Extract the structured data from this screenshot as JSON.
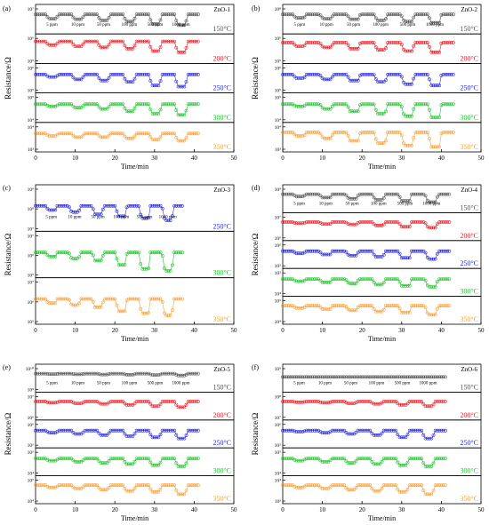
{
  "figure": {
    "y_label": "Resistance/Ω",
    "x_label": "Time/min",
    "concentration_labels": [
      "5 ppm",
      "10 ppm",
      "50 ppm",
      "100 ppm",
      "500 ppm",
      "1000 ppm"
    ]
  },
  "colors": {
    "150": "#555555",
    "200": "#ee1c25",
    "250": "#2b2bd8",
    "300": "#22c42e",
    "350": "#f7a23e",
    "axis": "#000000"
  },
  "chart_data": [
    {
      "id": "a",
      "panel_label": "(a)",
      "sample": "ZnO-1",
      "type": "scatter",
      "xlabel": "Time/min",
      "ylabel": "Resistance/Ω",
      "xlim": [
        0,
        50
      ],
      "x_ticks": [
        0,
        10,
        20,
        30,
        40,
        50
      ],
      "end_time": 41,
      "strips": [
        {
          "temp": "150°C",
          "color_key": "150",
          "y_ticks": [
            "10⁷"
          ],
          "baseline": 0.7,
          "dips": [
            0.18,
            0.2,
            0.25,
            0.3,
            0.4,
            0.45
          ],
          "labels": true
        },
        {
          "temp": "200°C",
          "color_key": "200",
          "y_ticks": [
            "10⁶",
            "10⁵"
          ],
          "baseline": 0.8,
          "dips": [
            0.15,
            0.2,
            0.25,
            0.3,
            0.4,
            0.45
          ],
          "labels": false
        },
        {
          "temp": "250°C",
          "color_key": "250",
          "y_ticks": [
            "10⁶",
            "10⁵"
          ],
          "baseline": 0.65,
          "dips": [
            0.1,
            0.2,
            0.25,
            0.3,
            0.45,
            0.5
          ],
          "labels": false
        },
        {
          "temp": "300°C",
          "color_key": "300",
          "y_ticks": [
            "10⁵",
            "10⁴"
          ],
          "baseline": 0.65,
          "dips": [
            0.1,
            0.15,
            0.2,
            0.3,
            0.4,
            0.45
          ],
          "labels": false
        },
        {
          "temp": "350°C",
          "color_key": "350",
          "y_ticks": [
            "10⁴",
            "10³"
          ],
          "baseline": 0.65,
          "dips": [
            0.1,
            0.15,
            0.15,
            0.2,
            0.25,
            0.3
          ],
          "labels": false
        }
      ]
    },
    {
      "id": "b",
      "panel_label": "(b)",
      "sample": "ZnO-2",
      "type": "scatter",
      "xlabel": "Time/min",
      "ylabel": "Resistance/Ω",
      "xlim": [
        0,
        50
      ],
      "x_ticks": [
        0,
        10,
        20,
        30,
        40,
        50
      ],
      "end_time": 43,
      "strips": [
        {
          "temp": "150°C",
          "color_key": "150",
          "y_ticks": [
            "10⁸"
          ],
          "baseline": 0.7,
          "dips": [
            0.15,
            0.18,
            0.2,
            0.25,
            0.3,
            0.35
          ],
          "labels": true
        },
        {
          "temp": "200°C",
          "color_key": "200",
          "y_ticks": [
            "10⁶",
            "10⁵"
          ],
          "baseline": 0.75,
          "dips": [
            0.15,
            0.2,
            0.25,
            0.3,
            0.35,
            0.4
          ],
          "labels": false
        },
        {
          "temp": "250°C",
          "color_key": "250",
          "y_ticks": [
            "10⁶",
            "10⁵"
          ],
          "baseline": 0.65,
          "dips": [
            0.15,
            0.2,
            0.25,
            0.3,
            0.4,
            0.45
          ],
          "labels": false
        },
        {
          "temp": "300°C",
          "color_key": "300",
          "y_ticks": [
            "10⁵",
            "10⁴"
          ],
          "baseline": 0.65,
          "dips": [
            0.1,
            0.2,
            0.3,
            0.4,
            0.5,
            0.55
          ],
          "labels": false
        },
        {
          "temp": "350°C",
          "color_key": "350",
          "y_ticks": [
            "10⁴",
            "10³"
          ],
          "baseline": 0.7,
          "dips": [
            0.15,
            0.25,
            0.35,
            0.45,
            0.55,
            0.6
          ],
          "labels": false
        }
      ]
    },
    {
      "id": "c",
      "panel_label": "(c)",
      "sample": "ZnO-3",
      "type": "scatter",
      "xlabel": "Time/min",
      "ylabel": "Resistance/Ω",
      "xlim": [
        0,
        50
      ],
      "x_ticks": [
        0,
        10,
        20,
        30,
        40,
        50
      ],
      "end_time": 37,
      "strips": [
        {
          "temp": "250°C",
          "color_key": "250",
          "y_ticks": [
            "10⁹",
            "10⁸",
            "10⁷"
          ],
          "baseline": 0.55,
          "dips": [
            0.1,
            0.15,
            0.2,
            0.25,
            0.3,
            0.35
          ],
          "labels": true
        },
        {
          "temp": "300°C",
          "color_key": "300",
          "y_ticks": [
            "10⁷",
            "10⁶",
            "10⁵"
          ],
          "baseline": 0.55,
          "dips": [
            0.1,
            0.15,
            0.2,
            0.3,
            0.4,
            0.45
          ],
          "labels": false
        },
        {
          "temp": "350°C",
          "color_key": "350",
          "y_ticks": [
            "10⁷",
            "10⁶",
            "10⁵"
          ],
          "baseline": 0.55,
          "dips": [
            0.1,
            0.15,
            0.2,
            0.3,
            0.35,
            0.4
          ],
          "labels": false
        }
      ]
    },
    {
      "id": "d",
      "panel_label": "(d)",
      "sample": "ZnO-4",
      "type": "scatter",
      "xlabel": "Time/min",
      "ylabel": "Resistance/Ω",
      "xlim": [
        0,
        50
      ],
      "x_ticks": [
        0,
        10,
        20,
        30,
        40,
        50
      ],
      "end_time": 42,
      "strips": [
        {
          "temp": "150°C",
          "color_key": "150",
          "y_ticks": [
            "10⁹"
          ],
          "baseline": 0.7,
          "dips": [
            0.1,
            0.15,
            0.2,
            0.25,
            0.3,
            0.35
          ],
          "labels": true
        },
        {
          "temp": "200°C",
          "color_key": "200",
          "y_ticks": [
            "10⁷",
            "10⁶"
          ],
          "baseline": 0.7,
          "dips": [
            0.05,
            0.08,
            0.1,
            0.15,
            0.2,
            0.25
          ],
          "labels": false
        },
        {
          "temp": "250°C",
          "color_key": "250",
          "y_ticks": [
            "10⁶",
            "10⁵"
          ],
          "baseline": 0.65,
          "dips": [
            0.1,
            0.15,
            0.2,
            0.25,
            0.3,
            0.35
          ],
          "labels": false
        },
        {
          "temp": "300°C",
          "color_key": "300",
          "y_ticks": [
            "10⁵",
            "10⁴"
          ],
          "baseline": 0.65,
          "dips": [
            0.1,
            0.15,
            0.2,
            0.25,
            0.3,
            0.35
          ],
          "labels": false
        },
        {
          "temp": "350°C",
          "color_key": "350",
          "y_ticks": [
            "10⁵",
            "10⁴"
          ],
          "baseline": 0.7,
          "dips": [
            0.1,
            0.15,
            0.2,
            0.25,
            0.3,
            0.4
          ],
          "labels": false
        }
      ]
    },
    {
      "id": "e",
      "panel_label": "(e)",
      "sample": "ZnO-5",
      "type": "scatter",
      "xlabel": "Time/min",
      "ylabel": "Resistance/Ω",
      "xlim": [
        0,
        50
      ],
      "x_ticks": [
        0,
        10,
        20,
        30,
        40,
        50
      ],
      "end_time": 41,
      "strips": [
        {
          "temp": "150°C",
          "color_key": "150",
          "y_ticks": [
            "10¹⁰",
            "10⁹"
          ],
          "baseline": 0.7,
          "dips": [
            0.02,
            0.03,
            0.04,
            0.05,
            0.06,
            0.08
          ],
          "labels": true
        },
        {
          "temp": "200°C",
          "color_key": "200",
          "y_ticks": [
            "10⁷",
            "10⁶"
          ],
          "baseline": 0.7,
          "dips": [
            0.05,
            0.08,
            0.1,
            0.15,
            0.2,
            0.25
          ],
          "labels": false
        },
        {
          "temp": "250°C",
          "color_key": "250",
          "y_ticks": [
            "10⁶",
            "10⁵"
          ],
          "baseline": 0.65,
          "dips": [
            0.1,
            0.15,
            0.2,
            0.25,
            0.3,
            0.35
          ],
          "labels": false
        },
        {
          "temp": "300°C",
          "color_key": "300",
          "y_ticks": [
            "10⁵",
            "10⁴"
          ],
          "baseline": 0.65,
          "dips": [
            0.1,
            0.15,
            0.2,
            0.25,
            0.3,
            0.35
          ],
          "labels": false
        },
        {
          "temp": "350°C",
          "color_key": "350",
          "y_ticks": [
            "10⁵",
            "10⁴"
          ],
          "baseline": 0.7,
          "dips": [
            0.1,
            0.15,
            0.2,
            0.25,
            0.3,
            0.4
          ],
          "labels": false
        }
      ]
    },
    {
      "id": "f",
      "panel_label": "(f)",
      "sample": "ZnO-6",
      "type": "scatter",
      "xlabel": "Time/min",
      "ylabel": "Resistance/Ω",
      "xlim": [
        0,
        50
      ],
      "x_ticks": [
        0,
        10,
        20,
        30,
        40,
        50
      ],
      "end_time": 41,
      "strips": [
        {
          "temp": "150°C",
          "color_key": "150",
          "y_ticks": [
            "10⁹"
          ],
          "baseline": 0.55,
          "dips": [
            0.0,
            0.0,
            0.0,
            0.0,
            0.0,
            0.0
          ],
          "labels": true
        },
        {
          "temp": "200°C",
          "color_key": "200",
          "y_ticks": [
            "10⁸",
            "10⁷"
          ],
          "baseline": 0.7,
          "dips": [
            0.03,
            0.05,
            0.08,
            0.1,
            0.15,
            0.2
          ],
          "labels": false
        },
        {
          "temp": "250°C",
          "color_key": "250",
          "y_ticks": [
            "10⁶",
            "10⁵"
          ],
          "baseline": 0.65,
          "dips": [
            0.05,
            0.1,
            0.15,
            0.2,
            0.3,
            0.35
          ],
          "labels": false
        },
        {
          "temp": "300°C",
          "color_key": "300",
          "y_ticks": [
            "10⁵",
            "10⁴"
          ],
          "baseline": 0.65,
          "dips": [
            0.1,
            0.15,
            0.2,
            0.25,
            0.3,
            0.35
          ],
          "labels": false
        },
        {
          "temp": "350°C",
          "color_key": "350",
          "y_ticks": [
            "10⁴",
            "10³"
          ],
          "baseline": 0.7,
          "dips": [
            0.1,
            0.15,
            0.2,
            0.25,
            0.3,
            0.4
          ],
          "labels": false
        }
      ]
    }
  ]
}
